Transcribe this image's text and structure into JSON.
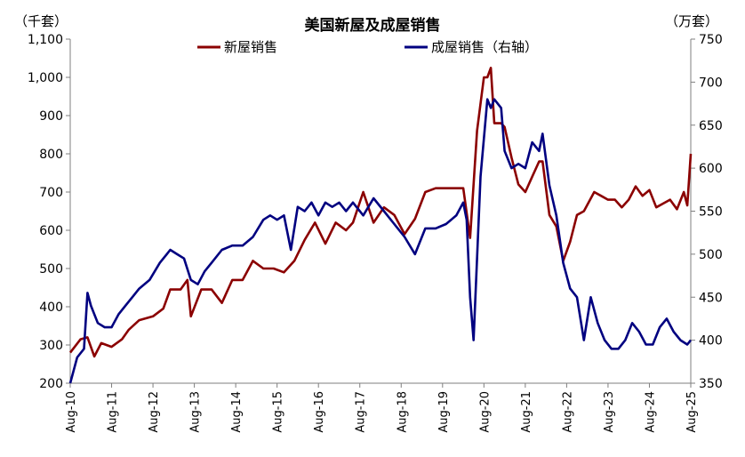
{
  "chart_data": {
    "type": "line",
    "title": "美国新屋及成屋销售",
    "left_unit": "（千套）",
    "right_unit": "（万套）",
    "y_left": {
      "min": 200,
      "max": 1100,
      "ticks": [
        200,
        300,
        400,
        500,
        600,
        700,
        800,
        900,
        1000,
        1100
      ],
      "tick_labels": [
        "200",
        "300",
        "400",
        "500",
        "600",
        "700",
        "800",
        "900",
        "1,000",
        "1,100"
      ]
    },
    "y_right": {
      "min": 350,
      "max": 750,
      "ticks": [
        350,
        400,
        450,
        500,
        550,
        600,
        650,
        700,
        750
      ],
      "tick_labels": [
        "350",
        "400",
        "450",
        "500",
        "550",
        "600",
        "650",
        "700",
        "750"
      ]
    },
    "x_range": [
      "2010-08",
      "2025-08"
    ],
    "x_ticks": [
      "Aug-10",
      "Aug-11",
      "Aug-12",
      "Aug-13",
      "Aug-14",
      "Aug-15",
      "Aug-16",
      "Aug-17",
      "Aug-18",
      "Aug-19",
      "Aug-20",
      "Aug-21",
      "Aug-22",
      "Aug-23",
      "Aug-24",
      "Aug-25"
    ],
    "legend_position": "top",
    "grid": false,
    "series": [
      {
        "name": "新屋销售",
        "axis": "left",
        "color": "#8B0000",
        "points": [
          [
            "2010-08",
            280
          ],
          [
            "2010-11",
            315
          ],
          [
            "2011-01",
            320
          ],
          [
            "2011-03",
            270
          ],
          [
            "2011-05",
            305
          ],
          [
            "2011-08",
            295
          ],
          [
            "2011-11",
            315
          ],
          [
            "2012-01",
            340
          ],
          [
            "2012-04",
            365
          ],
          [
            "2012-08",
            375
          ],
          [
            "2012-11",
            395
          ],
          [
            "2013-01",
            445
          ],
          [
            "2013-04",
            445
          ],
          [
            "2013-06",
            470
          ],
          [
            "2013-07",
            375
          ],
          [
            "2013-10",
            445
          ],
          [
            "2014-01",
            445
          ],
          [
            "2014-04",
            410
          ],
          [
            "2014-07",
            470
          ],
          [
            "2014-10",
            470
          ],
          [
            "2015-01",
            520
          ],
          [
            "2015-04",
            500
          ],
          [
            "2015-07",
            500
          ],
          [
            "2015-10",
            490
          ],
          [
            "2016-01",
            520
          ],
          [
            "2016-04",
            575
          ],
          [
            "2016-07",
            620
          ],
          [
            "2016-10",
            565
          ],
          [
            "2017-01",
            620
          ],
          [
            "2017-04",
            600
          ],
          [
            "2017-06",
            620
          ],
          [
            "2017-09",
            700
          ],
          [
            "2017-12",
            620
          ],
          [
            "2018-03",
            660
          ],
          [
            "2018-06",
            640
          ],
          [
            "2018-09",
            590
          ],
          [
            "2018-12",
            630
          ],
          [
            "2019-03",
            700
          ],
          [
            "2019-06",
            710
          ],
          [
            "2019-09",
            710
          ],
          [
            "2019-12",
            710
          ],
          [
            "2020-02",
            710
          ],
          [
            "2020-04",
            580
          ],
          [
            "2020-06",
            860
          ],
          [
            "2020-08",
            1000
          ],
          [
            "2020-09",
            1000
          ],
          [
            "2020-10",
            1025
          ],
          [
            "2020-11",
            880
          ],
          [
            "2021-01",
            880
          ],
          [
            "2021-02",
            870
          ],
          [
            "2021-04",
            790
          ],
          [
            "2021-06",
            720
          ],
          [
            "2021-08",
            700
          ],
          [
            "2021-10",
            740
          ],
          [
            "2021-12",
            780
          ],
          [
            "2022-01",
            780
          ],
          [
            "2022-03",
            640
          ],
          [
            "2022-05",
            610
          ],
          [
            "2022-07",
            520
          ],
          [
            "2022-09",
            570
          ],
          [
            "2022-11",
            640
          ],
          [
            "2023-01",
            650
          ],
          [
            "2023-04",
            700
          ],
          [
            "2023-06",
            690
          ],
          [
            "2023-08",
            680
          ],
          [
            "2023-10",
            680
          ],
          [
            "2023-12",
            660
          ],
          [
            "2024-02",
            680
          ],
          [
            "2024-04",
            715
          ],
          [
            "2024-06",
            690
          ],
          [
            "2024-08",
            705
          ],
          [
            "2024-10",
            660
          ],
          [
            "2024-12",
            670
          ],
          [
            "2025-02",
            680
          ],
          [
            "2025-04",
            655
          ],
          [
            "2025-06",
            700
          ],
          [
            "2025-07",
            665
          ],
          [
            "2025-08",
            800
          ]
        ]
      },
      {
        "name": "成屋销售（右轴）",
        "axis": "right",
        "color": "#000080",
        "points": [
          [
            "2010-08",
            350
          ],
          [
            "2010-10",
            380
          ],
          [
            "2010-12",
            390
          ],
          [
            "2011-01",
            455
          ],
          [
            "2011-02",
            440
          ],
          [
            "2011-04",
            420
          ],
          [
            "2011-06",
            415
          ],
          [
            "2011-08",
            415
          ],
          [
            "2011-10",
            430
          ],
          [
            "2011-12",
            440
          ],
          [
            "2012-02",
            450
          ],
          [
            "2012-04",
            460
          ],
          [
            "2012-07",
            470
          ],
          [
            "2012-10",
            490
          ],
          [
            "2012-12",
            500
          ],
          [
            "2013-01",
            505
          ],
          [
            "2013-03",
            500
          ],
          [
            "2013-05",
            495
          ],
          [
            "2013-07",
            470
          ],
          [
            "2013-09",
            465
          ],
          [
            "2013-11",
            480
          ],
          [
            "2014-01",
            490
          ],
          [
            "2014-04",
            505
          ],
          [
            "2014-07",
            510
          ],
          [
            "2014-10",
            510
          ],
          [
            "2015-01",
            520
          ],
          [
            "2015-04",
            540
          ],
          [
            "2015-06",
            545
          ],
          [
            "2015-08",
            540
          ],
          [
            "2015-10",
            545
          ],
          [
            "2015-12",
            505
          ],
          [
            "2016-02",
            555
          ],
          [
            "2016-04",
            550
          ],
          [
            "2016-06",
            560
          ],
          [
            "2016-08",
            545
          ],
          [
            "2016-10",
            560
          ],
          [
            "2016-12",
            555
          ],
          [
            "2017-02",
            560
          ],
          [
            "2017-04",
            550
          ],
          [
            "2017-06",
            560
          ],
          [
            "2017-09",
            545
          ],
          [
            "2017-12",
            565
          ],
          [
            "2018-03",
            550
          ],
          [
            "2018-06",
            535
          ],
          [
            "2018-09",
            520
          ],
          [
            "2018-12",
            500
          ],
          [
            "2019-03",
            530
          ],
          [
            "2019-06",
            530
          ],
          [
            "2019-09",
            535
          ],
          [
            "2019-12",
            545
          ],
          [
            "2020-02",
            560
          ],
          [
            "2020-03",
            540
          ],
          [
            "2020-04",
            450
          ],
          [
            "2020-05",
            400
          ],
          [
            "2020-07",
            590
          ],
          [
            "2020-09",
            680
          ],
          [
            "2020-10",
            670
          ],
          [
            "2020-11",
            680
          ],
          [
            "2021-01",
            670
          ],
          [
            "2021-02",
            620
          ],
          [
            "2021-04",
            600
          ],
          [
            "2021-06",
            605
          ],
          [
            "2021-08",
            600
          ],
          [
            "2021-10",
            630
          ],
          [
            "2021-12",
            620
          ],
          [
            "2022-01",
            640
          ],
          [
            "2022-03",
            580
          ],
          [
            "2022-05",
            545
          ],
          [
            "2022-07",
            490
          ],
          [
            "2022-09",
            460
          ],
          [
            "2022-11",
            450
          ],
          [
            "2023-01",
            400
          ],
          [
            "2023-03",
            450
          ],
          [
            "2023-05",
            420
          ],
          [
            "2023-07",
            400
          ],
          [
            "2023-09",
            390
          ],
          [
            "2023-11",
            390
          ],
          [
            "2024-01",
            400
          ],
          [
            "2024-03",
            420
          ],
          [
            "2024-05",
            410
          ],
          [
            "2024-07",
            395
          ],
          [
            "2024-09",
            395
          ],
          [
            "2024-11",
            415
          ],
          [
            "2025-01",
            425
          ],
          [
            "2025-03",
            410
          ],
          [
            "2025-05",
            400
          ],
          [
            "2025-07",
            395
          ],
          [
            "2025-08",
            400
          ]
        ]
      }
    ]
  }
}
